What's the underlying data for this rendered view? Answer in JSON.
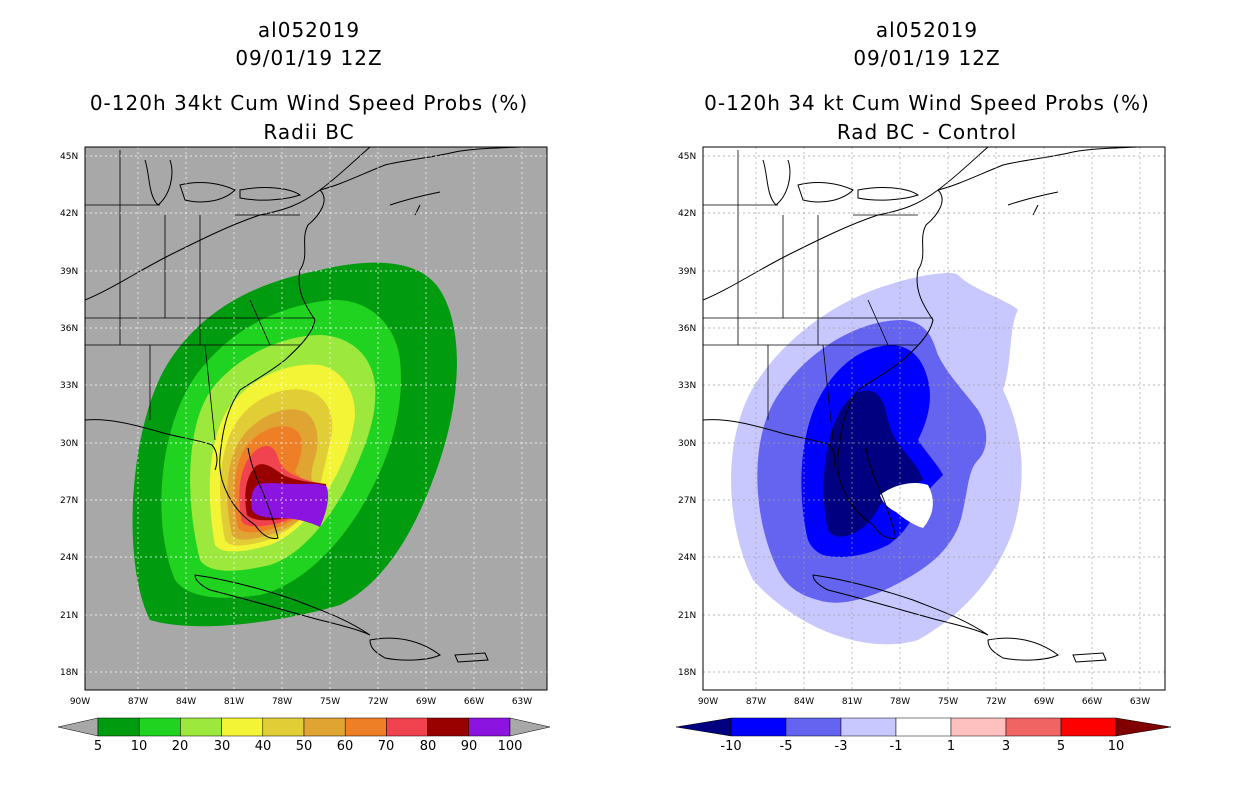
{
  "left": {
    "storm_id": "al052019",
    "datetime": "09/01/19 12Z",
    "title": "0-120h 34kt Cum Wind Speed Probs (%)",
    "subtitle": "Radii BC",
    "background": "#a8a8a8",
    "colorbar": {
      "labels": [
        "5",
        "10",
        "20",
        "30",
        "40",
        "50",
        "60",
        "70",
        "80",
        "90",
        "100"
      ],
      "colors": [
        "#a8a8a8",
        "#009b0f",
        "#21d321",
        "#9de83c",
        "#f4f436",
        "#e1cd35",
        "#e0a433",
        "#ee7f27",
        "#f1434f",
        "#990000",
        "#8c14e0",
        "#a8a8a8"
      ]
    }
  },
  "right": {
    "storm_id": "al052019",
    "datetime": "09/01/19 12Z",
    "title": "0-120h 34 kt Cum Wind Speed Probs (%)",
    "subtitle": "Rad BC - Control",
    "background": "#ffffff",
    "colorbar": {
      "labels": [
        "-10",
        "-5",
        "-3",
        "-1",
        "1",
        "3",
        "5",
        "10"
      ],
      "colors": [
        "#000080",
        "#0000ff",
        "#6464f0",
        "#c8c8ff",
        "#ffffff",
        "#ffc0c0",
        "#f06464",
        "#ff0000",
        "#800000"
      ]
    }
  },
  "axes": {
    "lat_labels": [
      "45N",
      "42N",
      "39N",
      "36N",
      "33N",
      "30N",
      "27N",
      "24N",
      "21N",
      "18N"
    ],
    "lon_labels": [
      "90W",
      "87W",
      "84W",
      "81W",
      "78W",
      "75W",
      "72W",
      "69W",
      "66W",
      "63W"
    ]
  }
}
